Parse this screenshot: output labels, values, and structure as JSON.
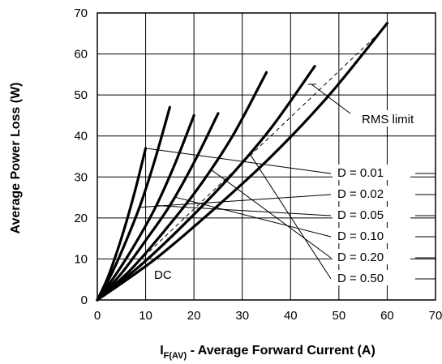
{
  "chart_data": {
    "type": "line",
    "xlabel_main": "I",
    "xlabel_sub": "F(AV)",
    "xlabel_rest": " - Average Forward Current (A)",
    "ylabel": "Average Power Loss (W)",
    "xlim": [
      0,
      70
    ],
    "ylim": [
      0,
      70
    ],
    "xticks": [
      0,
      10,
      20,
      30,
      40,
      50,
      60,
      70
    ],
    "yticks": [
      0,
      10,
      20,
      30,
      40,
      50,
      60,
      70
    ],
    "grid": true,
    "series": [
      {
        "name": "D = 0.01",
        "x": [
          0,
          2,
          4,
          6,
          8,
          10
        ],
        "y": [
          0,
          5,
          11.5,
          19,
          27.5,
          37
        ]
      },
      {
        "name": "D = 0.02",
        "x": [
          0,
          3,
          6,
          9,
          12,
          15
        ],
        "y": [
          0,
          6.5,
          14.5,
          23.5,
          34.5,
          47
        ]
      },
      {
        "name": "D = 0.05",
        "x": [
          0,
          4,
          8,
          12,
          16,
          20
        ],
        "y": [
          0,
          6.5,
          14,
          22.5,
          33,
          45
        ]
      },
      {
        "name": "D = 0.10",
        "x": [
          0,
          5,
          10,
          15,
          20,
          25
        ],
        "y": [
          0,
          6.5,
          14.5,
          23,
          33.5,
          45.5
        ]
      },
      {
        "name": "D = 0.20",
        "x": [
          0,
          7,
          14,
          21,
          28,
          35
        ],
        "y": [
          0,
          7.5,
          17,
          27.5,
          40,
          55.5
        ]
      },
      {
        "name": "D = 0.50",
        "x": [
          0,
          9,
          18,
          27,
          36,
          45
        ],
        "y": [
          0,
          8.5,
          18.5,
          29.5,
          42,
          57
        ]
      },
      {
        "name": "DC",
        "x": [
          0,
          12,
          24,
          36,
          48,
          60
        ],
        "y": [
          0,
          10,
          22,
          35,
          50,
          67.5
        ]
      }
    ],
    "rms_limit": {
      "label": "RMS limit",
      "x": [
        2,
        60
      ],
      "y": [
        2,
        67
      ]
    },
    "annotations": {
      "dc_label": "DC",
      "rms_label": "RMS limit",
      "legend_labels": [
        "D = 0.01",
        "D = 0.02",
        "D = 0.05",
        "D = 0.10",
        "D = 0.20",
        "D = 0.50"
      ]
    }
  }
}
